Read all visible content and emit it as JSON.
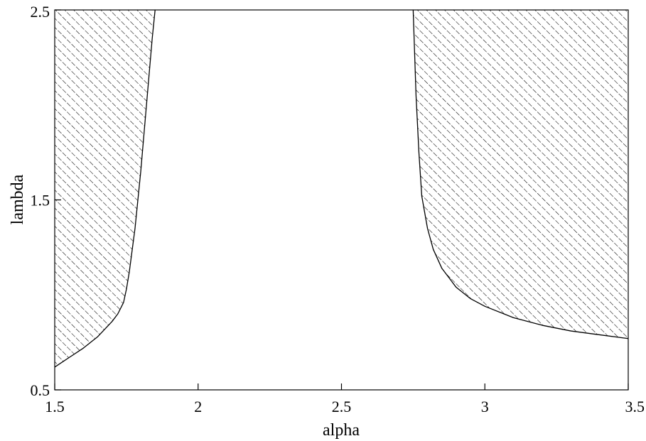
{
  "chart_data": {
    "type": "area",
    "xlabel": "alpha",
    "ylabel": "lambda",
    "xlim": [
      1.5,
      3.5
    ],
    "ylim": [
      0.5,
      2.5
    ],
    "x_ticks": [
      "1.5",
      "2",
      "2.5",
      "3",
      "3.5"
    ],
    "y_ticks": [
      "0.5",
      "1.5",
      "2.5"
    ],
    "grid": false,
    "hatch_color": "#000000",
    "regions": [
      {
        "fill": "hatched",
        "side": "left",
        "boundary_x": [
          1.5,
          1.55,
          1.6,
          1.65,
          1.7,
          1.72,
          1.74,
          1.75,
          1.76,
          1.78,
          1.8,
          1.82,
          1.84,
          1.85
        ],
        "boundary_y": [
          0.62,
          0.67,
          0.72,
          0.78,
          0.86,
          0.9,
          0.96,
          1.03,
          1.12,
          1.35,
          1.65,
          2.0,
          2.35,
          2.5
        ]
      },
      {
        "fill": "hatched",
        "side": "right",
        "boundary_x": [
          2.75,
          2.76,
          2.77,
          2.78,
          2.8,
          2.82,
          2.85,
          2.9,
          2.95,
          3.0,
          3.1,
          3.2,
          3.3,
          3.4,
          3.5
        ],
        "boundary_y": [
          2.5,
          2.05,
          1.75,
          1.52,
          1.35,
          1.24,
          1.14,
          1.04,
          0.98,
          0.94,
          0.88,
          0.84,
          0.81,
          0.79,
          0.77
        ]
      }
    ]
  }
}
